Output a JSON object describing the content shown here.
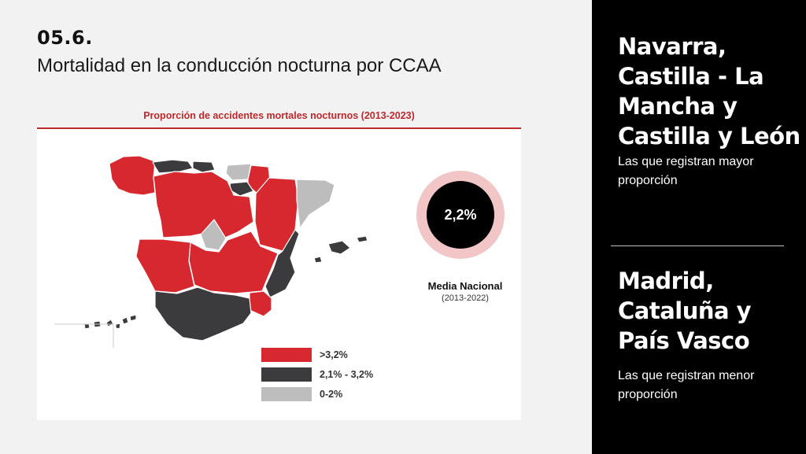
{
  "header": {
    "section_number": "05.6.",
    "title": "Mortalidad en la conducción nocturna por CCAA"
  },
  "chart": {
    "title": "Proporción de accidentes mortales nocturnos (2013-2023)",
    "legend": [
      {
        "label": ">3,2%",
        "color": "#d6282e"
      },
      {
        "label": "2,1% - 3,2%",
        "color": "#3b3b3d"
      },
      {
        "label": "0-2%",
        "color": "#bdbdbd"
      }
    ],
    "national_average": {
      "value": "2,2%",
      "label": "Media Nacional",
      "period": "(2013-2022)"
    },
    "colors": {
      "high": "#d6282e",
      "mid": "#3b3b3d",
      "low": "#bdbdbd",
      "accent": "#c0282b",
      "ring": "#f2c6c6"
    }
  },
  "chart_data": {
    "type": "choropleth",
    "title": "Proporción de accidentes mortales nocturnos (2013-2023)",
    "categories": [
      ">3,2%",
      "2,1% - 3,2%",
      "0-2%"
    ],
    "regions": [
      {
        "name": "Galicia",
        "category": ">3,2%"
      },
      {
        "name": "Asturias",
        "category": "2,1% - 3,2%"
      },
      {
        "name": "Cantabria",
        "category": "2,1% - 3,2%"
      },
      {
        "name": "País Vasco",
        "category": "0-2%"
      },
      {
        "name": "Navarra",
        "category": ">3,2%"
      },
      {
        "name": "La Rioja",
        "category": "2,1% - 3,2%"
      },
      {
        "name": "Aragón",
        "category": ">3,2%"
      },
      {
        "name": "Cataluña",
        "category": "0-2%"
      },
      {
        "name": "Castilla y León",
        "category": ">3,2%"
      },
      {
        "name": "Madrid",
        "category": "0-2%"
      },
      {
        "name": "Castilla - La Mancha",
        "category": ">3,2%"
      },
      {
        "name": "Extremadura",
        "category": ">3,2%"
      },
      {
        "name": "Comunidad Valenciana",
        "category": "2,1% - 3,2%"
      },
      {
        "name": "Murcia",
        "category": ">3,2%"
      },
      {
        "name": "Andalucía",
        "category": "2,1% - 3,2%"
      },
      {
        "name": "Baleares",
        "category": "2,1% - 3,2%"
      },
      {
        "name": "Canarias",
        "category": "2,1% - 3,2%"
      }
    ],
    "annotations": [
      {
        "label": "Media Nacional",
        "value": "2,2%",
        "period": "(2013-2022)"
      }
    ]
  },
  "sidebar": {
    "top": {
      "heading": "Navarra, Castilla - La Mancha y Castilla y León",
      "sub": "Las que registran mayor proporción"
    },
    "bottom": {
      "heading": "Madrid, Cataluña y País Vasco",
      "sub": "Las que registran menor proporción"
    }
  }
}
